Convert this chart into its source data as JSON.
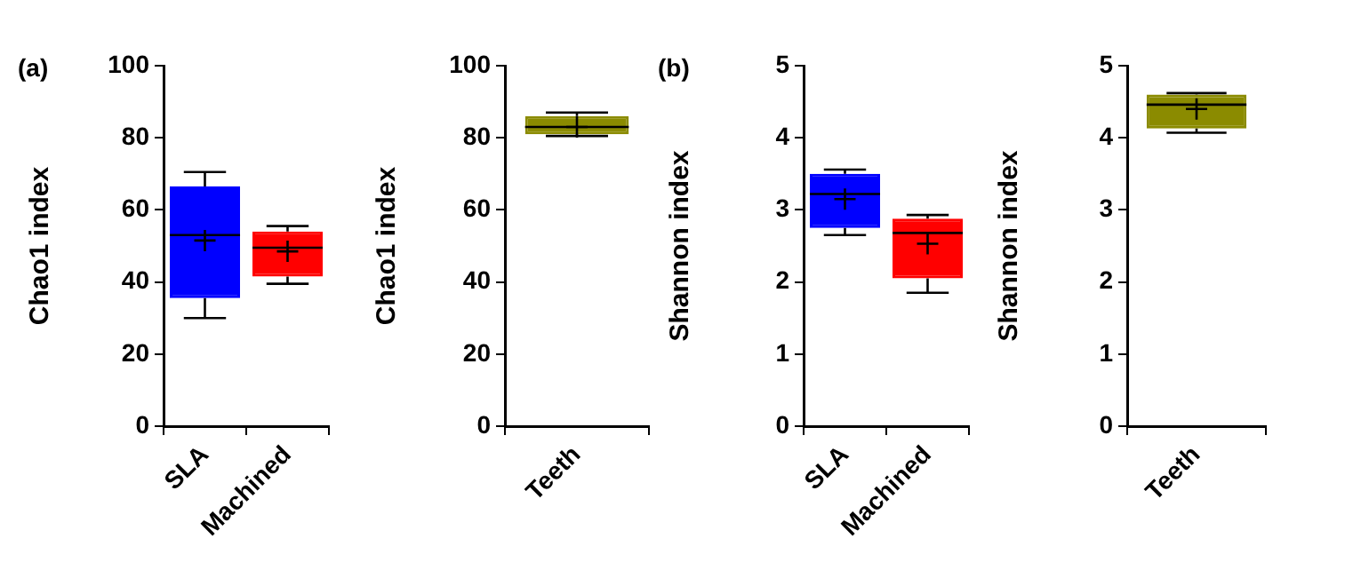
{
  "chart_data": [
    {
      "type": "box",
      "annotations": [
        "(a)"
      ],
      "ylabel": "Chao1 index",
      "categories": [
        "SLA",
        "Machined"
      ],
      "colors": [
        "#0000ff",
        "#ff0000"
      ],
      "ylim": [
        0,
        100
      ],
      "yticks": [
        0,
        20,
        40,
        60,
        80,
        100
      ],
      "grid": false,
      "boxes": [
        {
          "low": 30,
          "q1": 35.5,
          "median": 53,
          "q3": 66.5,
          "high": 70.5,
          "mean": 51.5
        },
        {
          "low": 39.5,
          "q1": 41.5,
          "median": 49.5,
          "q3": 54,
          "high": 55.5,
          "mean": 48.5
        }
      ]
    },
    {
      "type": "box",
      "ylabel": "Chao1 index",
      "categories": [
        "Teeth"
      ],
      "colors": [
        "#8b8b00"
      ],
      "ylim": [
        0,
        100
      ],
      "yticks": [
        0,
        20,
        40,
        60,
        80,
        100
      ],
      "grid": false,
      "boxes": [
        {
          "low": 80.5,
          "q1": 81,
          "median": 83,
          "q3": 86,
          "high": 87,
          "mean": 83
        }
      ]
    },
    {
      "type": "box",
      "annotations": [
        "(b)"
      ],
      "ylabel": "Shannon index",
      "categories": [
        "SLA",
        "Machined"
      ],
      "colors": [
        "#0000ff",
        "#ff0000"
      ],
      "ylim": [
        0,
        5
      ],
      "yticks": [
        0,
        1,
        2,
        3,
        4,
        5
      ],
      "grid": false,
      "boxes": [
        {
          "low": 2.65,
          "q1": 2.75,
          "median": 3.22,
          "q3": 3.5,
          "high": 3.56,
          "mean": 3.15
        },
        {
          "low": 1.85,
          "q1": 2.05,
          "median": 2.68,
          "q3": 2.88,
          "high": 2.93,
          "mean": 2.53
        }
      ]
    },
    {
      "type": "box",
      "ylabel": "Shannon index",
      "categories": [
        "Teeth"
      ],
      "colors": [
        "#8b8b00"
      ],
      "ylim": [
        0,
        5
      ],
      "yticks": [
        0,
        1,
        2,
        3,
        4,
        5
      ],
      "grid": false,
      "boxes": [
        {
          "low": 4.07,
          "q1": 4.13,
          "median": 4.46,
          "q3": 4.6,
          "high": 4.62,
          "mean": 4.4
        }
      ]
    }
  ]
}
